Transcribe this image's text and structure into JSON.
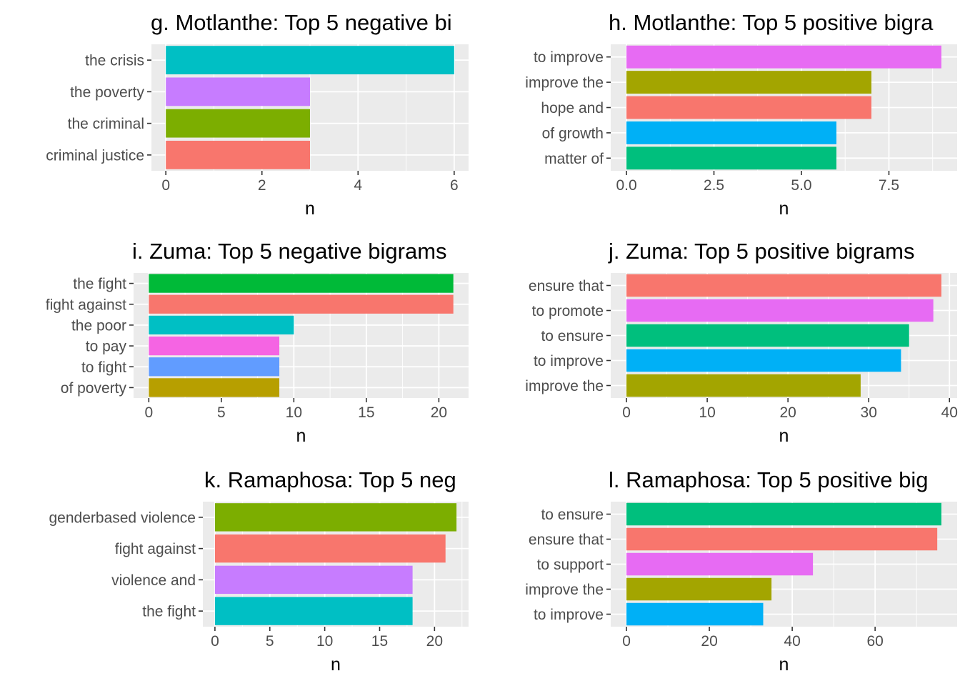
{
  "chart_data": [
    {
      "type": "bar",
      "orientation": "horizontal",
      "title": "g. Motlanthe: Top 5 negative bi",
      "xlabel": "n",
      "ylabel": "",
      "categories": [
        "the crisis",
        "the poverty",
        "the criminal",
        "criminal justice"
      ],
      "values": [
        6,
        3,
        3,
        3
      ],
      "colors": [
        "#00BFC4",
        "#C77CFF",
        "#7CAE00",
        "#F8766D"
      ],
      "xlim": [
        -0.3,
        6.3
      ],
      "ticks": [
        0,
        2,
        4,
        6
      ],
      "tick_labels": [
        "0",
        "2",
        "4",
        "6"
      ],
      "grid": true
    },
    {
      "type": "bar",
      "orientation": "horizontal",
      "title": "h. Motlanthe: Top 5 positive bigra",
      "xlabel": "n",
      "ylabel": "",
      "categories": [
        "to improve",
        "improve the",
        "hope and",
        "of growth",
        "matter of"
      ],
      "values": [
        9,
        7,
        7,
        6,
        6
      ],
      "colors": [
        "#E76BF3",
        "#A3A500",
        "#F8766D",
        "#00B0F6",
        "#00BF7D"
      ],
      "xlim": [
        -0.45,
        9.45
      ],
      "ticks": [
        0,
        2.5,
        5,
        7.5
      ],
      "tick_labels": [
        "0.0",
        "2.5",
        "5.0",
        "7.5"
      ],
      "grid": true
    },
    {
      "type": "bar",
      "orientation": "horizontal",
      "title": "i. Zuma: Top 5 negative bigrams",
      "xlabel": "n",
      "ylabel": "",
      "categories": [
        "the fight",
        "fight against",
        "the poor",
        "to pay",
        "to fight",
        "of poverty"
      ],
      "values": [
        21,
        21,
        10,
        9,
        9,
        9
      ],
      "colors": [
        "#00BA38",
        "#F8766D",
        "#00BFC4",
        "#F564E3",
        "#619CFF",
        "#B79F00"
      ],
      "xlim": [
        -1.05,
        22.05
      ],
      "ticks": [
        0,
        5,
        10,
        15,
        20
      ],
      "tick_labels": [
        "0",
        "5",
        "10",
        "15",
        "20"
      ],
      "grid": true
    },
    {
      "type": "bar",
      "orientation": "horizontal",
      "title": "j. Zuma: Top 5 positive bigrams",
      "xlabel": "n",
      "ylabel": "",
      "categories": [
        "ensure that",
        "to promote",
        "to ensure",
        "to improve",
        "improve the"
      ],
      "values": [
        39,
        38,
        35,
        34,
        29
      ],
      "colors": [
        "#F8766D",
        "#E76BF3",
        "#00BF7D",
        "#00B0F6",
        "#A3A500"
      ],
      "xlim": [
        -1.95,
        40.95
      ],
      "ticks": [
        0,
        10,
        20,
        30,
        40
      ],
      "tick_labels": [
        "0",
        "10",
        "20",
        "30",
        "40"
      ],
      "grid": true
    },
    {
      "type": "bar",
      "orientation": "horizontal",
      "title": "k. Ramaphosa: Top 5 neg",
      "xlabel": "n",
      "ylabel": "",
      "categories": [
        "genderbased violence",
        "fight against",
        "violence and",
        "the fight"
      ],
      "values": [
        22,
        21,
        18,
        18
      ],
      "colors": [
        "#7CAE00",
        "#F8766D",
        "#C77CFF",
        "#00BFC4"
      ],
      "xlim": [
        -1.1,
        23.1
      ],
      "ticks": [
        0,
        5,
        10,
        15,
        20
      ],
      "tick_labels": [
        "0",
        "5",
        "10",
        "15",
        "20"
      ],
      "grid": true
    },
    {
      "type": "bar",
      "orientation": "horizontal",
      "title": "l. Ramaphosa: Top 5 positive big",
      "xlabel": "n",
      "ylabel": "",
      "categories": [
        "to ensure",
        "ensure that",
        "to support",
        "improve the",
        "to improve"
      ],
      "values": [
        76,
        75,
        45,
        35,
        33
      ],
      "colors": [
        "#00BF7D",
        "#F8766D",
        "#E76BF3",
        "#A3A500",
        "#00B0F6"
      ],
      "xlim": [
        -3.8,
        79.8
      ],
      "ticks": [
        0,
        20,
        40,
        60
      ],
      "tick_labels": [
        "0",
        "20",
        "40",
        "60"
      ],
      "grid": true
    }
  ]
}
